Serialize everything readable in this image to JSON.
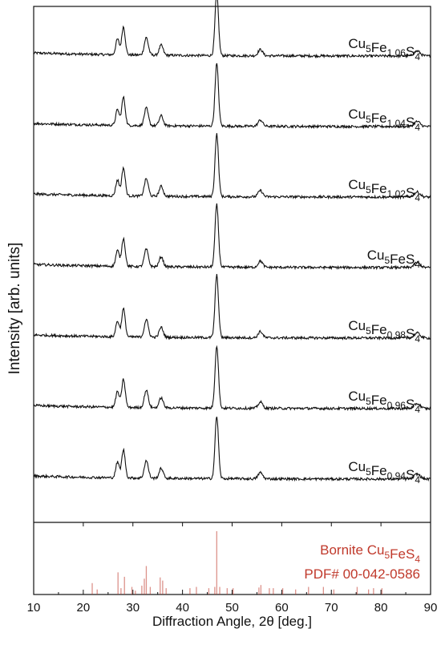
{
  "chart_data": {
    "type": "line",
    "xlabel": "Diffraction Angle, 2θ [deg.]",
    "ylabel": "Intensity [arb. units]",
    "xlim": [
      10,
      90
    ],
    "xticks": [
      10,
      20,
      30,
      40,
      50,
      60,
      70,
      80,
      90
    ],
    "y_units": "arbitrary (offset)",
    "peak_positions_2theta": [
      26.9,
      28.1,
      32.7,
      35.7,
      46.9,
      55.7,
      87.3
    ],
    "series": [
      {
        "name": "Cu5Fe1.06S4",
        "base": "Cu",
        "sub1": "5",
        "mid": "Fe",
        "sub2": "1.06",
        "end": "S",
        "sub3": "4",
        "peak_heights": [
          0.25,
          0.45,
          0.28,
          0.16,
          1.0,
          0.1,
          0.08
        ]
      },
      {
        "name": "Cu5Fe1.04S4",
        "base": "Cu",
        "sub1": "5",
        "mid": "Fe",
        "sub2": "1.04",
        "end": "S",
        "sub3": "4",
        "peak_heights": [
          0.25,
          0.45,
          0.28,
          0.16,
          1.0,
          0.1,
          0.08
        ]
      },
      {
        "name": "Cu5Fe1.02S4",
        "base": "Cu",
        "sub1": "5",
        "mid": "Fe",
        "sub2": "1.02",
        "end": "S",
        "sub3": "4",
        "peak_heights": [
          0.25,
          0.45,
          0.28,
          0.16,
          1.0,
          0.1,
          0.08
        ]
      },
      {
        "name": "Cu5FeS4",
        "base": "Cu",
        "sub1": "5",
        "mid": "FeS",
        "sub2": "",
        "end": "",
        "sub3": "4",
        "peak_heights": [
          0.25,
          0.45,
          0.28,
          0.16,
          1.0,
          0.1,
          0.08
        ]
      },
      {
        "name": "Cu5Fe0.98S4",
        "base": "Cu",
        "sub1": "5",
        "mid": "Fe",
        "sub2": "0.98",
        "end": "S",
        "sub3": "4",
        "peak_heights": [
          0.25,
          0.45,
          0.28,
          0.16,
          1.0,
          0.1,
          0.08
        ]
      },
      {
        "name": "Cu5Fe0.96S4",
        "base": "Cu",
        "sub1": "5",
        "mid": "Fe",
        "sub2": "0.96",
        "end": "S",
        "sub3": "4",
        "peak_heights": [
          0.25,
          0.45,
          0.28,
          0.16,
          1.0,
          0.1,
          0.08
        ]
      },
      {
        "name": "Cu5Fe0.94S4",
        "base": "Cu",
        "sub1": "5",
        "mid": "Fe",
        "sub2": "0.94",
        "end": "S",
        "sub3": "4",
        "peak_heights": [
          0.25,
          0.45,
          0.28,
          0.16,
          1.0,
          0.1,
          0.08
        ]
      }
    ],
    "reference": {
      "label_line1_base": "Bornite Cu",
      "label_line1_sub1": "5",
      "label_line1_mid": "FeS",
      "label_line1_sub2": "4",
      "label_line2": "PDF# 00-042-0586",
      "color": "#c0392b",
      "sticks": [
        {
          "x": 21.8,
          "h": 0.18
        },
        {
          "x": 22.8,
          "h": 0.08
        },
        {
          "x": 27.0,
          "h": 0.35
        },
        {
          "x": 27.6,
          "h": 0.1
        },
        {
          "x": 28.3,
          "h": 0.28
        },
        {
          "x": 29.8,
          "h": 0.12
        },
        {
          "x": 30.5,
          "h": 0.06
        },
        {
          "x": 31.8,
          "h": 0.14
        },
        {
          "x": 32.3,
          "h": 0.25
        },
        {
          "x": 32.7,
          "h": 0.45
        },
        {
          "x": 33.5,
          "h": 0.12
        },
        {
          "x": 35.5,
          "h": 0.27
        },
        {
          "x": 36.0,
          "h": 0.22
        },
        {
          "x": 36.7,
          "h": 0.1
        },
        {
          "x": 41.5,
          "h": 0.1
        },
        {
          "x": 42.8,
          "h": 0.12
        },
        {
          "x": 45.3,
          "h": 0.1
        },
        {
          "x": 46.5,
          "h": 0.12
        },
        {
          "x": 46.9,
          "h": 1.0
        },
        {
          "x": 47.5,
          "h": 0.12
        },
        {
          "x": 49.0,
          "h": 0.1
        },
        {
          "x": 50.2,
          "h": 0.1
        },
        {
          "x": 55.4,
          "h": 0.11
        },
        {
          "x": 55.8,
          "h": 0.15
        },
        {
          "x": 57.5,
          "h": 0.1
        },
        {
          "x": 58.3,
          "h": 0.1
        },
        {
          "x": 60.2,
          "h": 0.1
        },
        {
          "x": 62.8,
          "h": 0.08
        },
        {
          "x": 65.4,
          "h": 0.12
        },
        {
          "x": 68.4,
          "h": 0.12
        },
        {
          "x": 70.5,
          "h": 0.08
        },
        {
          "x": 75.2,
          "h": 0.12
        },
        {
          "x": 77.5,
          "h": 0.08
        },
        {
          "x": 78.5,
          "h": 0.1
        },
        {
          "x": 80.2,
          "h": 0.1
        }
      ]
    },
    "colors": {
      "trace": "#111111",
      "reference": "#c0392b",
      "axis": "#111111"
    }
  }
}
